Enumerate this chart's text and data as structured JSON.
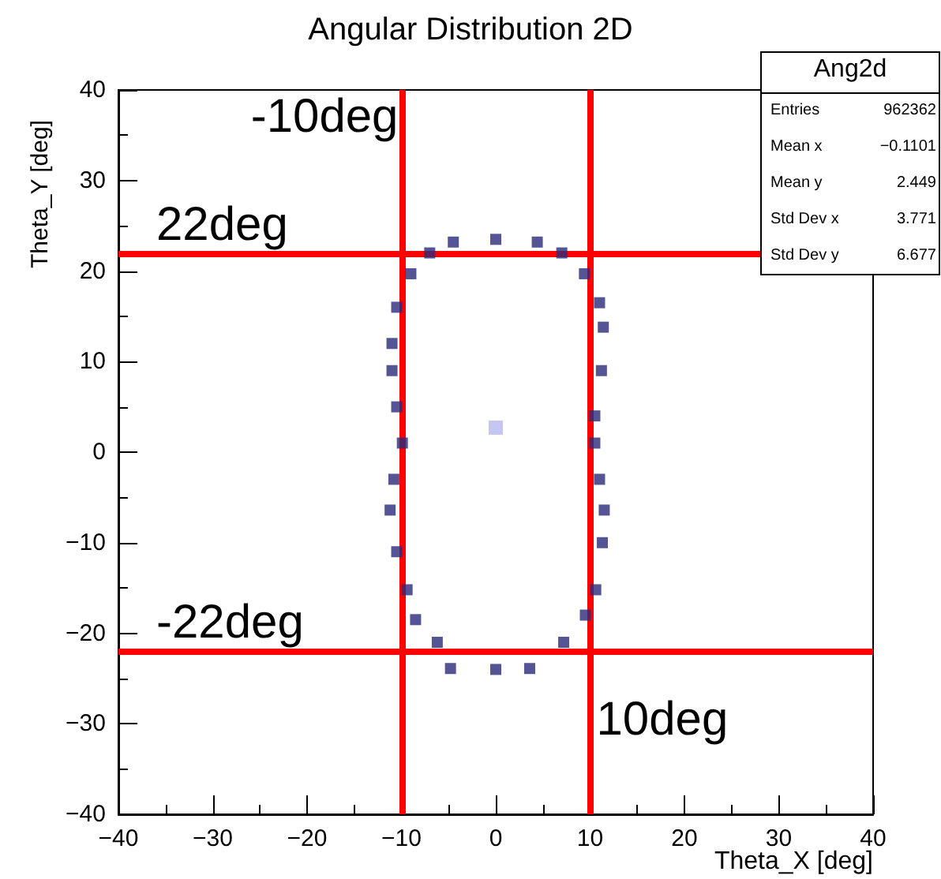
{
  "chart_data": {
    "type": "scatter",
    "title": "Angular Distribution 2D",
    "xlabel": "Theta_X [deg]",
    "ylabel": "Theta_Y [deg]",
    "xlim": [
      -40,
      40
    ],
    "xticks": [
      -40,
      -30,
      -20,
      -10,
      0,
      10,
      20,
      30,
      40
    ],
    "ylim": [
      -40,
      40
    ],
    "yticks": [
      -40,
      -30,
      -20,
      -10,
      0,
      10,
      20,
      30,
      40
    ],
    "marker": "square",
    "series": [
      {
        "color": "#2b2b7a",
        "x": [
          -4.5,
          0,
          4.4,
          7,
          9.4,
          11,
          11.4,
          11.2,
          10.5,
          10.5,
          11,
          11.5,
          11.3,
          10.6,
          9.5,
          7.2,
          3.6,
          0,
          -4.8,
          -6.2,
          -8.5,
          -9.4,
          -10.5,
          -11.2,
          -10.8,
          -9.9,
          -10.5,
          -11,
          -11,
          -10.5,
          -9,
          -7
        ],
        "values": [
          23.2,
          23.5,
          23.2,
          22,
          19.7,
          16.5,
          13.8,
          9,
          4,
          1,
          -3,
          -6.4,
          -10,
          -15.2,
          -18,
          -21,
          -23.9,
          -24,
          -23.9,
          -21,
          -18.5,
          -15.2,
          -11,
          -6.4,
          -3,
          1,
          5,
          9,
          12,
          16,
          19.7,
          22
        ]
      },
      {
        "color": "#b8b8f0",
        "x": [
          0
        ],
        "values": [
          2.7
        ]
      }
    ],
    "ref_lines": [
      {
        "axis": "x",
        "value": -10,
        "label": "-10deg",
        "color": "#ff0000"
      },
      {
        "axis": "x",
        "value": 10,
        "label": "10deg",
        "color": "#ff0000"
      },
      {
        "axis": "y",
        "value": 22,
        "label": "22deg",
        "color": "#ff0000"
      },
      {
        "axis": "y",
        "value": -22,
        "label": "-22deg",
        "color": "#ff0000"
      }
    ],
    "annotations": [
      "Ang2d",
      "Entries",
      "962362",
      "Mean x",
      "−0.1101",
      "Mean y",
      "2.449",
      "Std Dev x",
      "3.771",
      "Std Dev y",
      "6.677"
    ]
  }
}
